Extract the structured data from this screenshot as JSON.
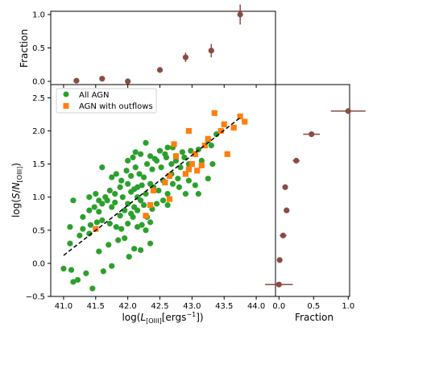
{
  "chart_data": [
    {
      "type": "scatter",
      "panel": "main",
      "xlabel": "log(L[OIII][ergs^-1])",
      "ylabel": "log(S/N[OIII])",
      "xlim": [
        40.8,
        44.3
      ],
      "ylim": [
        -0.5,
        2.7
      ],
      "xticks": [
        "41.0",
        "41.5",
        "42.0",
        "42.5",
        "43.0",
        "43.5",
        "44.0"
      ],
      "yticks": [
        "−0.5",
        "0.0",
        "0.5",
        "1.0",
        "1.5",
        "2.0",
        "2.5"
      ],
      "legend_position": "top-left",
      "series": [
        {
          "name": "All AGN",
          "marker": "circle",
          "color": "#2ca02c",
          "points": [
            [
              41.0,
              -0.08
            ],
            [
              41.12,
              -0.1
            ],
            [
              41.15,
              -0.28
            ],
            [
              41.22,
              -0.25
            ],
            [
              41.35,
              -0.15
            ],
            [
              41.45,
              -0.38
            ],
            [
              41.62,
              -0.12
            ],
            [
              41.75,
              -0.04
            ],
            [
              42.02,
              0.1
            ],
            [
              42.2,
              0.2
            ],
            [
              41.1,
              0.3
            ],
            [
              41.25,
              0.42
            ],
            [
              41.4,
              0.45
            ],
            [
              41.55,
              0.18
            ],
            [
              41.7,
              0.28
            ],
            [
              41.85,
              0.35
            ],
            [
              41.95,
              0.38
            ],
            [
              42.1,
              0.22
            ],
            [
              42.35,
              0.3
            ],
            [
              41.1,
              0.55
            ],
            [
              41.3,
              0.52
            ],
            [
              41.42,
              0.58
            ],
            [
              41.52,
              0.62
            ],
            [
              41.6,
              0.65
            ],
            [
              41.72,
              0.6
            ],
            [
              41.82,
              0.55
            ],
            [
              41.9,
              0.52
            ],
            [
              42.0,
              0.6
            ],
            [
              42.08,
              0.7
            ],
            [
              42.15,
              0.55
            ],
            [
              42.22,
              0.58
            ],
            [
              42.28,
              0.5
            ],
            [
              42.35,
              0.62
            ],
            [
              41.15,
              0.95
            ],
            [
              41.3,
              0.7
            ],
            [
              41.4,
              0.8
            ],
            [
              41.48,
              0.85
            ],
            [
              41.55,
              0.78
            ],
            [
              41.6,
              0.9
            ],
            [
              41.68,
              0.95
            ],
            [
              41.75,
              0.85
            ],
            [
              41.8,
              0.92
            ],
            [
              41.88,
              0.72
            ],
            [
              41.95,
              0.8
            ],
            [
              42.0,
              0.9
            ],
            [
              42.05,
              0.75
            ],
            [
              42.1,
              0.85
            ],
            [
              42.15,
              0.8
            ],
            [
              42.2,
              0.95
            ],
            [
              42.25,
              0.88
            ],
            [
              42.3,
              0.7
            ],
            [
              42.38,
              0.82
            ],
            [
              42.45,
              0.9
            ],
            [
              42.55,
              0.95
            ],
            [
              42.62,
              0.88
            ],
            [
              41.4,
              1.0
            ],
            [
              41.5,
              1.05
            ],
            [
              41.55,
              0.95
            ],
            [
              41.65,
              1.0
            ],
            [
              41.72,
              1.1
            ],
            [
              41.8,
              1.05
            ],
            [
              41.88,
              1.15
            ],
            [
              41.92,
              1.0
            ],
            [
              42.0,
              1.2
            ],
            [
              42.05,
              1.08
            ],
            [
              42.1,
              1.12
            ],
            [
              42.15,
              1.0
            ],
            [
              42.22,
              1.18
            ],
            [
              42.28,
              1.05
            ],
            [
              42.35,
              1.2
            ],
            [
              42.4,
              1.15
            ],
            [
              42.48,
              1.1
            ],
            [
              42.55,
              1.25
            ],
            [
              42.62,
              1.05
            ],
            [
              42.7,
              1.2
            ],
            [
              42.8,
              1.15
            ],
            [
              42.9,
              1.05
            ],
            [
              42.95,
              1.25
            ],
            [
              43.05,
              1.18
            ],
            [
              43.1,
              1.05
            ],
            [
              41.6,
              1.45
            ],
            [
              41.75,
              1.3
            ],
            [
              41.82,
              1.35
            ],
            [
              41.9,
              1.25
            ],
            [
              41.98,
              1.4
            ],
            [
              42.05,
              1.32
            ],
            [
              42.12,
              1.45
            ],
            [
              42.18,
              1.35
            ],
            [
              42.25,
              1.3
            ],
            [
              42.3,
              1.5
            ],
            [
              42.38,
              1.42
            ],
            [
              42.45,
              1.55
            ],
            [
              42.52,
              1.45
            ],
            [
              42.6,
              1.6
            ],
            [
              42.68,
              1.5
            ],
            [
              42.75,
              1.55
            ],
            [
              42.82,
              1.45
            ],
            [
              42.88,
              1.6
            ],
            [
              42.95,
              1.5
            ],
            [
              43.05,
              1.65
            ],
            [
              43.15,
              1.55
            ],
            [
              42.0,
              1.55
            ],
            [
              42.08,
              1.6
            ],
            [
              42.2,
              1.65
            ],
            [
              42.35,
              1.62
            ],
            [
              42.5,
              1.7
            ],
            [
              42.7,
              1.75
            ],
            [
              42.85,
              1.68
            ],
            [
              42.98,
              1.7
            ],
            [
              43.1,
              1.72
            ],
            [
              43.3,
              1.78
            ],
            [
              43.38,
              1.95
            ],
            [
              43.32,
              1.5
            ],
            [
              43.25,
              1.28
            ],
            [
              42.12,
              1.68
            ],
            [
              42.28,
              1.82
            ],
            [
              42.42,
              1.58
            ],
            [
              42.58,
              1.65
            ],
            [
              42.62,
              1.75
            ],
            [
              42.15,
              1.15
            ],
            [
              42.68,
              1.35
            ],
            [
              42.78,
              1.28
            ],
            [
              43.25,
              1.85
            ]
          ]
        },
        {
          "name": "AGN with outflows",
          "marker": "square",
          "color": "#ff7f0e",
          "points": [
            [
              41.5,
              0.52
            ],
            [
              42.28,
              0.72
            ],
            [
              42.35,
              0.88
            ],
            [
              42.65,
              0.97
            ],
            [
              42.4,
              1.1
            ],
            [
              42.58,
              1.22
            ],
            [
              42.65,
              1.32
            ],
            [
              42.75,
              1.62
            ],
            [
              42.72,
              1.8
            ],
            [
              42.9,
              1.35
            ],
            [
              42.95,
              1.42
            ],
            [
              43.0,
              1.5
            ],
            [
              43.05,
              1.65
            ],
            [
              43.08,
              1.4
            ],
            [
              43.15,
              1.48
            ],
            [
              42.95,
              2.0
            ],
            [
              43.2,
              1.78
            ],
            [
              43.25,
              1.88
            ],
            [
              43.35,
              2.27
            ],
            [
              43.45,
              2.0
            ],
            [
              43.5,
              2.1
            ],
            [
              43.55,
              1.65
            ],
            [
              43.65,
              2.05
            ],
            [
              43.75,
              2.22
            ],
            [
              43.82,
              2.14
            ]
          ]
        }
      ],
      "fit_line": {
        "style": "dashed",
        "color": "#000000",
        "from": [
          41.0,
          0.12
        ],
        "to": [
          43.75,
          2.2
        ]
      }
    },
    {
      "type": "scatter",
      "panel": "top",
      "ylabel": "Fraction",
      "ylim": [
        0.0,
        1.0
      ],
      "yticks": [
        "0.0",
        "0.5",
        "1.0"
      ],
      "color": "#8b4c42",
      "points": [
        {
          "x": 41.2,
          "y": 0.01,
          "yerr": 0.03
        },
        {
          "x": 41.6,
          "y": 0.04,
          "yerr": 0.03
        },
        {
          "x": 42.0,
          "y": 0.0,
          "yerr": 0.02
        },
        {
          "x": 42.5,
          "y": 0.17,
          "yerr": 0.04
        },
        {
          "x": 42.9,
          "y": 0.36,
          "yerr": 0.07
        },
        {
          "x": 43.3,
          "y": 0.46,
          "yerr": 0.1
        },
        {
          "x": 43.75,
          "y": 1.0,
          "yerr": 0.15
        }
      ]
    },
    {
      "type": "scatter",
      "panel": "right",
      "xlabel": "Fraction",
      "xlim": [
        -0.05,
        1.02
      ],
      "xticks": [
        "0.0",
        "0.5",
        "1.0"
      ],
      "color": "#8b4c42",
      "points": [
        {
          "y": 2.3,
          "x": 1.0,
          "xerr": 0.25
        },
        {
          "y": 1.95,
          "x": 0.47,
          "xerr": 0.12
        },
        {
          "y": 1.55,
          "x": 0.25,
          "xerr": 0.05
        },
        {
          "y": 1.15,
          "x": 0.09,
          "xerr": 0.04
        },
        {
          "y": 0.8,
          "x": 0.11,
          "xerr": 0.04
        },
        {
          "y": 0.42,
          "x": 0.06,
          "xerr": 0.05
        },
        {
          "y": 0.05,
          "x": 0.01,
          "xerr": 0.03
        },
        {
          "y": -0.32,
          "x": 0.0,
          "xerr": 0.2
        }
      ]
    }
  ]
}
